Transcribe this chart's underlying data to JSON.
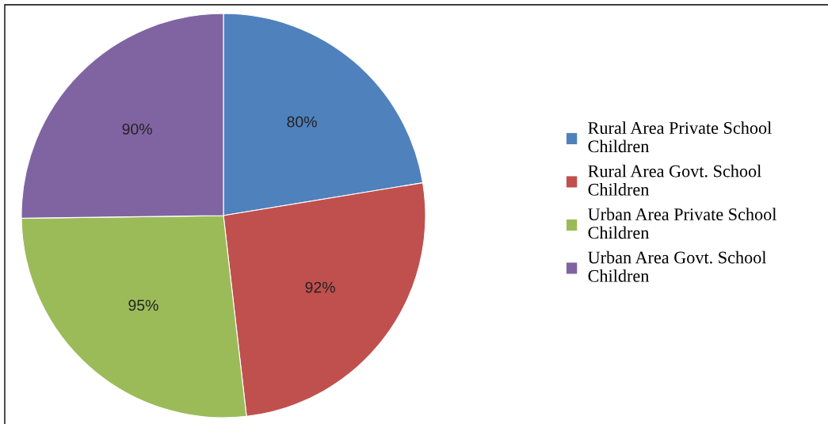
{
  "chart_data": {
    "type": "pie",
    "categories": [
      "Rural Area Private School Children",
      "Rural Area Govt. School Children",
      "Urban Area Private School Children",
      "Urban Area Govt. School Children"
    ],
    "values": [
      80,
      92,
      95,
      90
    ],
    "colors": [
      "#4f81bd",
      "#c0504d",
      "#9bbb59",
      "#8064a2"
    ],
    "value_labels": [
      "80%",
      "92%",
      "95%",
      "90%"
    ],
    "legend": "right"
  }
}
